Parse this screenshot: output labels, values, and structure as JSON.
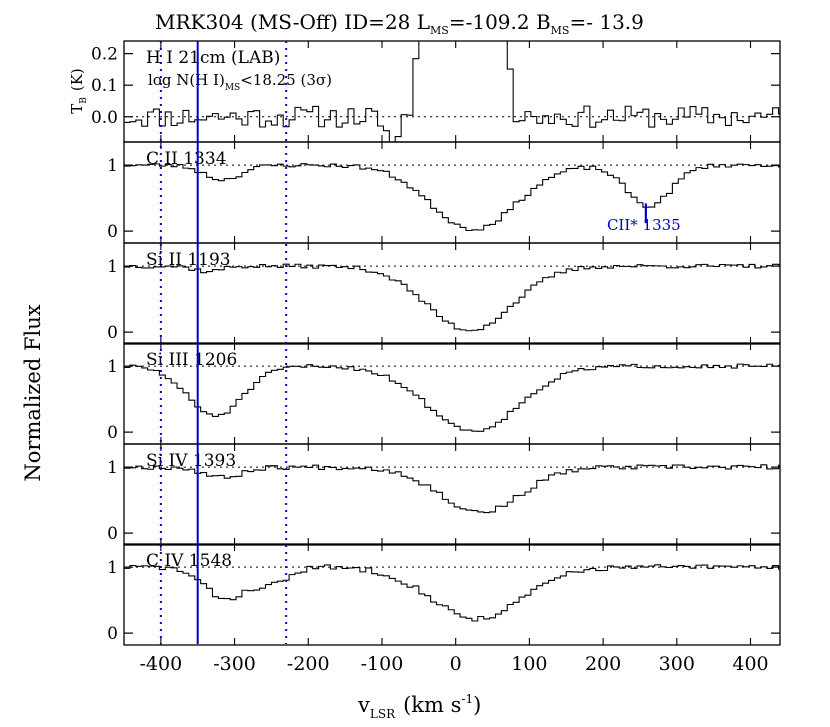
{
  "chart_data": {
    "type": "line",
    "title": "MRK304 (MS-Off) ID=28 L_MS=-109.2 B_MS=- 13.9",
    "title_parts": {
      "main": "MRK304 (MS-Off) ID=28 L",
      "sub1": "MS",
      "mid": "=-109.2 B",
      "sub2": "MS",
      "end": "=- 13.9"
    },
    "xlabel": "v_LSR (km s^-1)",
    "xlabel_parts": {
      "v": "v",
      "sub": "LSR",
      "unit": "(km s",
      "exp": "-1",
      "close": ")"
    },
    "ylabel_shared": "Normalized Flux",
    "xlim": [
      -450,
      440
    ],
    "x_ticks": [
      -400,
      -300,
      -200,
      -100,
      0,
      100,
      200,
      300,
      400
    ],
    "x_tick_labels": [
      "-400",
      "-300",
      "-200",
      "-100",
      "0",
      "100",
      "200",
      "300",
      "400"
    ],
    "vertical_lines": {
      "solid": -350,
      "dotted": [
        -400,
        -230
      ],
      "color": "#0000cc"
    },
    "colors": {
      "absorption_fill": "#a6a6a6",
      "marker": "#0000cc",
      "line": "#000000"
    },
    "panels": [
      {
        "name": "H I 21cm (LAB)",
        "kind": "hi",
        "ylim": [
          -0.08,
          0.24
        ],
        "yticks": [
          0.0,
          0.1,
          0.2
        ],
        "ytick_labels": [
          "0.0",
          "0.1",
          "0.2"
        ],
        "ylabel_parts": {
          "t": "T",
          "sub": "B",
          "unit": "(K)"
        },
        "label": "H I 21cm (LAB)",
        "label2_parts": {
          "pre": "log N(H I)",
          "sub": "MS",
          "post": "<18.25 (3σ)"
        },
        "continuum": 0.0,
        "feature": {
          "center": 5,
          "width": 42,
          "depth": -1.2
        },
        "noise": 0.035,
        "seed": 11
      },
      {
        "name": "C II 1334",
        "kind": "abs",
        "ylim": [
          -0.18,
          1.35
        ],
        "yticks": [
          0,
          1
        ],
        "ytick_labels": [
          "0",
          "1"
        ],
        "label": "C II 1334",
        "continuum": 1.0,
        "feature": {
          "center": 20,
          "width": 58,
          "depth": 0.97
        },
        "extra_features": [
          {
            "center": 258,
            "width": 30,
            "depth": 0.62
          },
          {
            "center": -320,
            "width": 25,
            "depth": 0.22
          }
        ],
        "shade": [
          -400,
          -230
        ],
        "noise": 0.03,
        "seed": 23,
        "marker": {
          "x": 258,
          "label": "CII* 1335"
        }
      },
      {
        "name": "Si II 1193",
        "kind": "abs",
        "ylim": [
          -0.18,
          1.35
        ],
        "yticks": [
          0,
          1
        ],
        "ytick_labels": [
          "0",
          "1"
        ],
        "label": "Si II 1193",
        "continuum": 1.0,
        "feature": {
          "center": 15,
          "width": 58,
          "depth": 0.97
        },
        "extra_features": [
          {
            "center": -340,
            "width": 18,
            "depth": 0.08
          }
        ],
        "noise": 0.03,
        "seed": 37
      },
      {
        "name": "Si III 1206",
        "kind": "abs",
        "ylim": [
          -0.18,
          1.35
        ],
        "yticks": [
          0,
          1
        ],
        "ytick_labels": [
          "0",
          "1"
        ],
        "label": "Si III 1206",
        "continuum": 1.0,
        "feature": {
          "center": 20,
          "width": 62,
          "depth": 0.98
        },
        "extra_features": [
          {
            "center": -330,
            "width": 38,
            "depth": 0.75
          }
        ],
        "shade": [
          -400,
          -230
        ],
        "noise": 0.03,
        "seed": 51
      },
      {
        "name": "Si IV 1393",
        "kind": "abs",
        "ylim": [
          -0.18,
          1.35
        ],
        "yticks": [
          0,
          1
        ],
        "ytick_labels": [
          "0",
          "1"
        ],
        "label": "Si IV 1393",
        "continuum": 1.0,
        "feature": {
          "center": 30,
          "width": 55,
          "depth": 0.68
        },
        "extra_features": [
          {
            "center": -320,
            "width": 25,
            "depth": 0.16
          }
        ],
        "shade": [
          -400,
          -230
        ],
        "noise": 0.035,
        "seed": 67
      },
      {
        "name": "C IV 1548",
        "kind": "abs",
        "ylim": [
          -0.18,
          1.35
        ],
        "yticks": [
          0,
          1
        ],
        "ytick_labels": [
          "0",
          "1"
        ],
        "label": "C IV 1548",
        "continuum": 1.0,
        "feature": {
          "center": 25,
          "width": 62,
          "depth": 0.78
        },
        "extra_features": [
          {
            "center": -315,
            "width": 30,
            "depth": 0.48
          },
          {
            "center": -250,
            "width": 22,
            "depth": 0.22
          }
        ],
        "shade": [
          -400,
          -230
        ],
        "noise": 0.04,
        "seed": 83
      }
    ]
  }
}
